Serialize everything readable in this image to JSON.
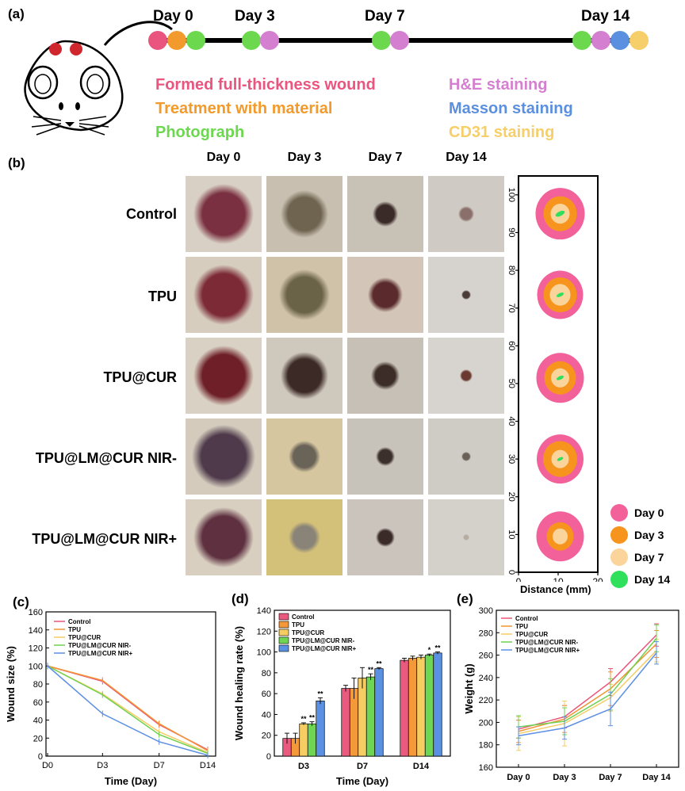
{
  "panels": {
    "a": "(a)",
    "b": "(b)",
    "c": "(c)",
    "d": "(d)",
    "e": "(e)"
  },
  "timeline": {
    "days": [
      "Day 0",
      "Day 3",
      "Day 7",
      "Day 14"
    ],
    "legend": [
      {
        "label": "Formed full-thickness wound",
        "color": "#e9557f"
      },
      {
        "label": "Treatment with material",
        "color": "#f39a2c"
      },
      {
        "label": "Photograph",
        "color": "#6bd84e"
      },
      {
        "label": "H&E staining",
        "color": "#d47fd0"
      },
      {
        "label": "Masson staining",
        "color": "#5b8fe0"
      },
      {
        "label": "CD31 staining",
        "color": "#f6cf6a"
      }
    ]
  },
  "photos": {
    "columns": [
      "Day 0",
      "Day 3",
      "Day 7",
      "Day 14"
    ],
    "rows": [
      "Control",
      "TPU",
      "TPU@CUR",
      "TPU@LM@CUR NIR-",
      "TPU@LM@CUR NIR+"
    ]
  },
  "map": {
    "axis_ticks": [
      "0",
      "10",
      "20",
      "30",
      "40",
      "50",
      "60",
      "70",
      "80",
      "90",
      "100"
    ],
    "x_ticks": [
      "0",
      "10",
      "20"
    ],
    "xlabel": "Distance (mm)",
    "legend": [
      {
        "label": "Day 0",
        "color": "#f3619a"
      },
      {
        "label": "Day 3",
        "color": "#f7941d"
      },
      {
        "label": "Day 7",
        "color": "#fbd49b"
      },
      {
        "label": "Day 14",
        "color": "#2fe05c"
      }
    ]
  },
  "chart_data": [
    {
      "type": "line",
      "title": "",
      "xlabel": "Time (Day)",
      "ylabel": "Wound size (%)",
      "categories": [
        "D0",
        "D3",
        "D7",
        "D14"
      ],
      "ylim": [
        0,
        160
      ],
      "yticks": [
        "0",
        "20",
        "40",
        "60",
        "80",
        "100",
        "120",
        "140",
        "160"
      ],
      "series": [
        {
          "name": "Control",
          "color": "#e8557a",
          "values": [
            100,
            83,
            35,
            7
          ]
        },
        {
          "name": "TPU",
          "color": "#f29433",
          "values": [
            100,
            84,
            36,
            6
          ]
        },
        {
          "name": "TPU@CUR",
          "color": "#f5cc66",
          "values": [
            100,
            69,
            27,
            4
          ]
        },
        {
          "name": "TPU@LM@CUR NIR-",
          "color": "#6fd14f",
          "values": [
            100,
            68,
            24,
            3
          ]
        },
        {
          "name": "TPU@LM@CUR NIR+",
          "color": "#5e8fe2",
          "values": [
            100,
            47,
            16,
            1
          ]
        }
      ]
    },
    {
      "type": "bar",
      "title": "",
      "xlabel": "Time (Day)",
      "ylabel": "Wound healing rate (%)",
      "categories": [
        "D3",
        "D7",
        "D14"
      ],
      "ylim": [
        0,
        140
      ],
      "yticks": [
        "0",
        "20",
        "40",
        "60",
        "80",
        "100",
        "120",
        "140"
      ],
      "series": [
        {
          "name": "Control",
          "color": "#ea5a7f",
          "values": [
            17,
            65,
            92
          ],
          "errors": [
            5,
            3,
            2
          ],
          "sig": [
            "",
            "",
            ""
          ]
        },
        {
          "name": "TPU",
          "color": "#f3993a",
          "values": [
            17,
            65,
            94
          ],
          "errors": [
            5,
            10,
            2
          ],
          "sig": [
            "",
            "",
            ""
          ]
        },
        {
          "name": "TPU@CUR",
          "color": "#f6cd63",
          "values": [
            31,
            75,
            95
          ],
          "errors": [
            1,
            10,
            2
          ],
          "sig": [
            "**",
            "",
            ""
          ]
        },
        {
          "name": "TPU@LM@CUR NIR-",
          "color": "#6ed652",
          "values": [
            31,
            76,
            97
          ],
          "errors": [
            2,
            3,
            1
          ],
          "sig": [
            "**",
            "**",
            "*"
          ]
        },
        {
          "name": "TPU@LM@CUR NIR+",
          "color": "#5b91e2",
          "values": [
            53,
            84,
            99
          ],
          "errors": [
            3,
            1,
            1
          ],
          "sig": [
            "**",
            "**",
            "**"
          ]
        }
      ]
    },
    {
      "type": "line",
      "title": "",
      "xlabel": "",
      "ylabel": "Weight (g)",
      "categories": [
        "Day 0",
        "Day 3",
        "Day 7",
        "Day 14"
      ],
      "ylim": [
        160,
        300
      ],
      "yticks": [
        "160",
        "180",
        "200",
        "220",
        "240",
        "260",
        "280",
        "300"
      ],
      "series": [
        {
          "name": "Control",
          "color": "#e8557a",
          "values": [
            194,
            205,
            236,
            278
          ],
          "errors": [
            8,
            10,
            12,
            10
          ]
        },
        {
          "name": "TPU",
          "color": "#f29433",
          "values": [
            192,
            203,
            230,
            270
          ],
          "errors": [
            10,
            12,
            15,
            12
          ]
        },
        {
          "name": "TPU@CUR",
          "color": "#f5cc66",
          "values": [
            190,
            199,
            222,
            264
          ],
          "errors": [
            15,
            20,
            12,
            10
          ]
        },
        {
          "name": "TPU@LM@CUR NIR-",
          "color": "#6fd14f",
          "values": [
            196,
            201,
            225,
            275
          ],
          "errors": [
            10,
            12,
            14,
            12
          ]
        },
        {
          "name": "TPU@LM@CUR NIR+",
          "color": "#5e8fe2",
          "values": [
            188,
            195,
            212,
            262
          ],
          "errors": [
            8,
            10,
            15,
            10
          ]
        }
      ]
    }
  ]
}
